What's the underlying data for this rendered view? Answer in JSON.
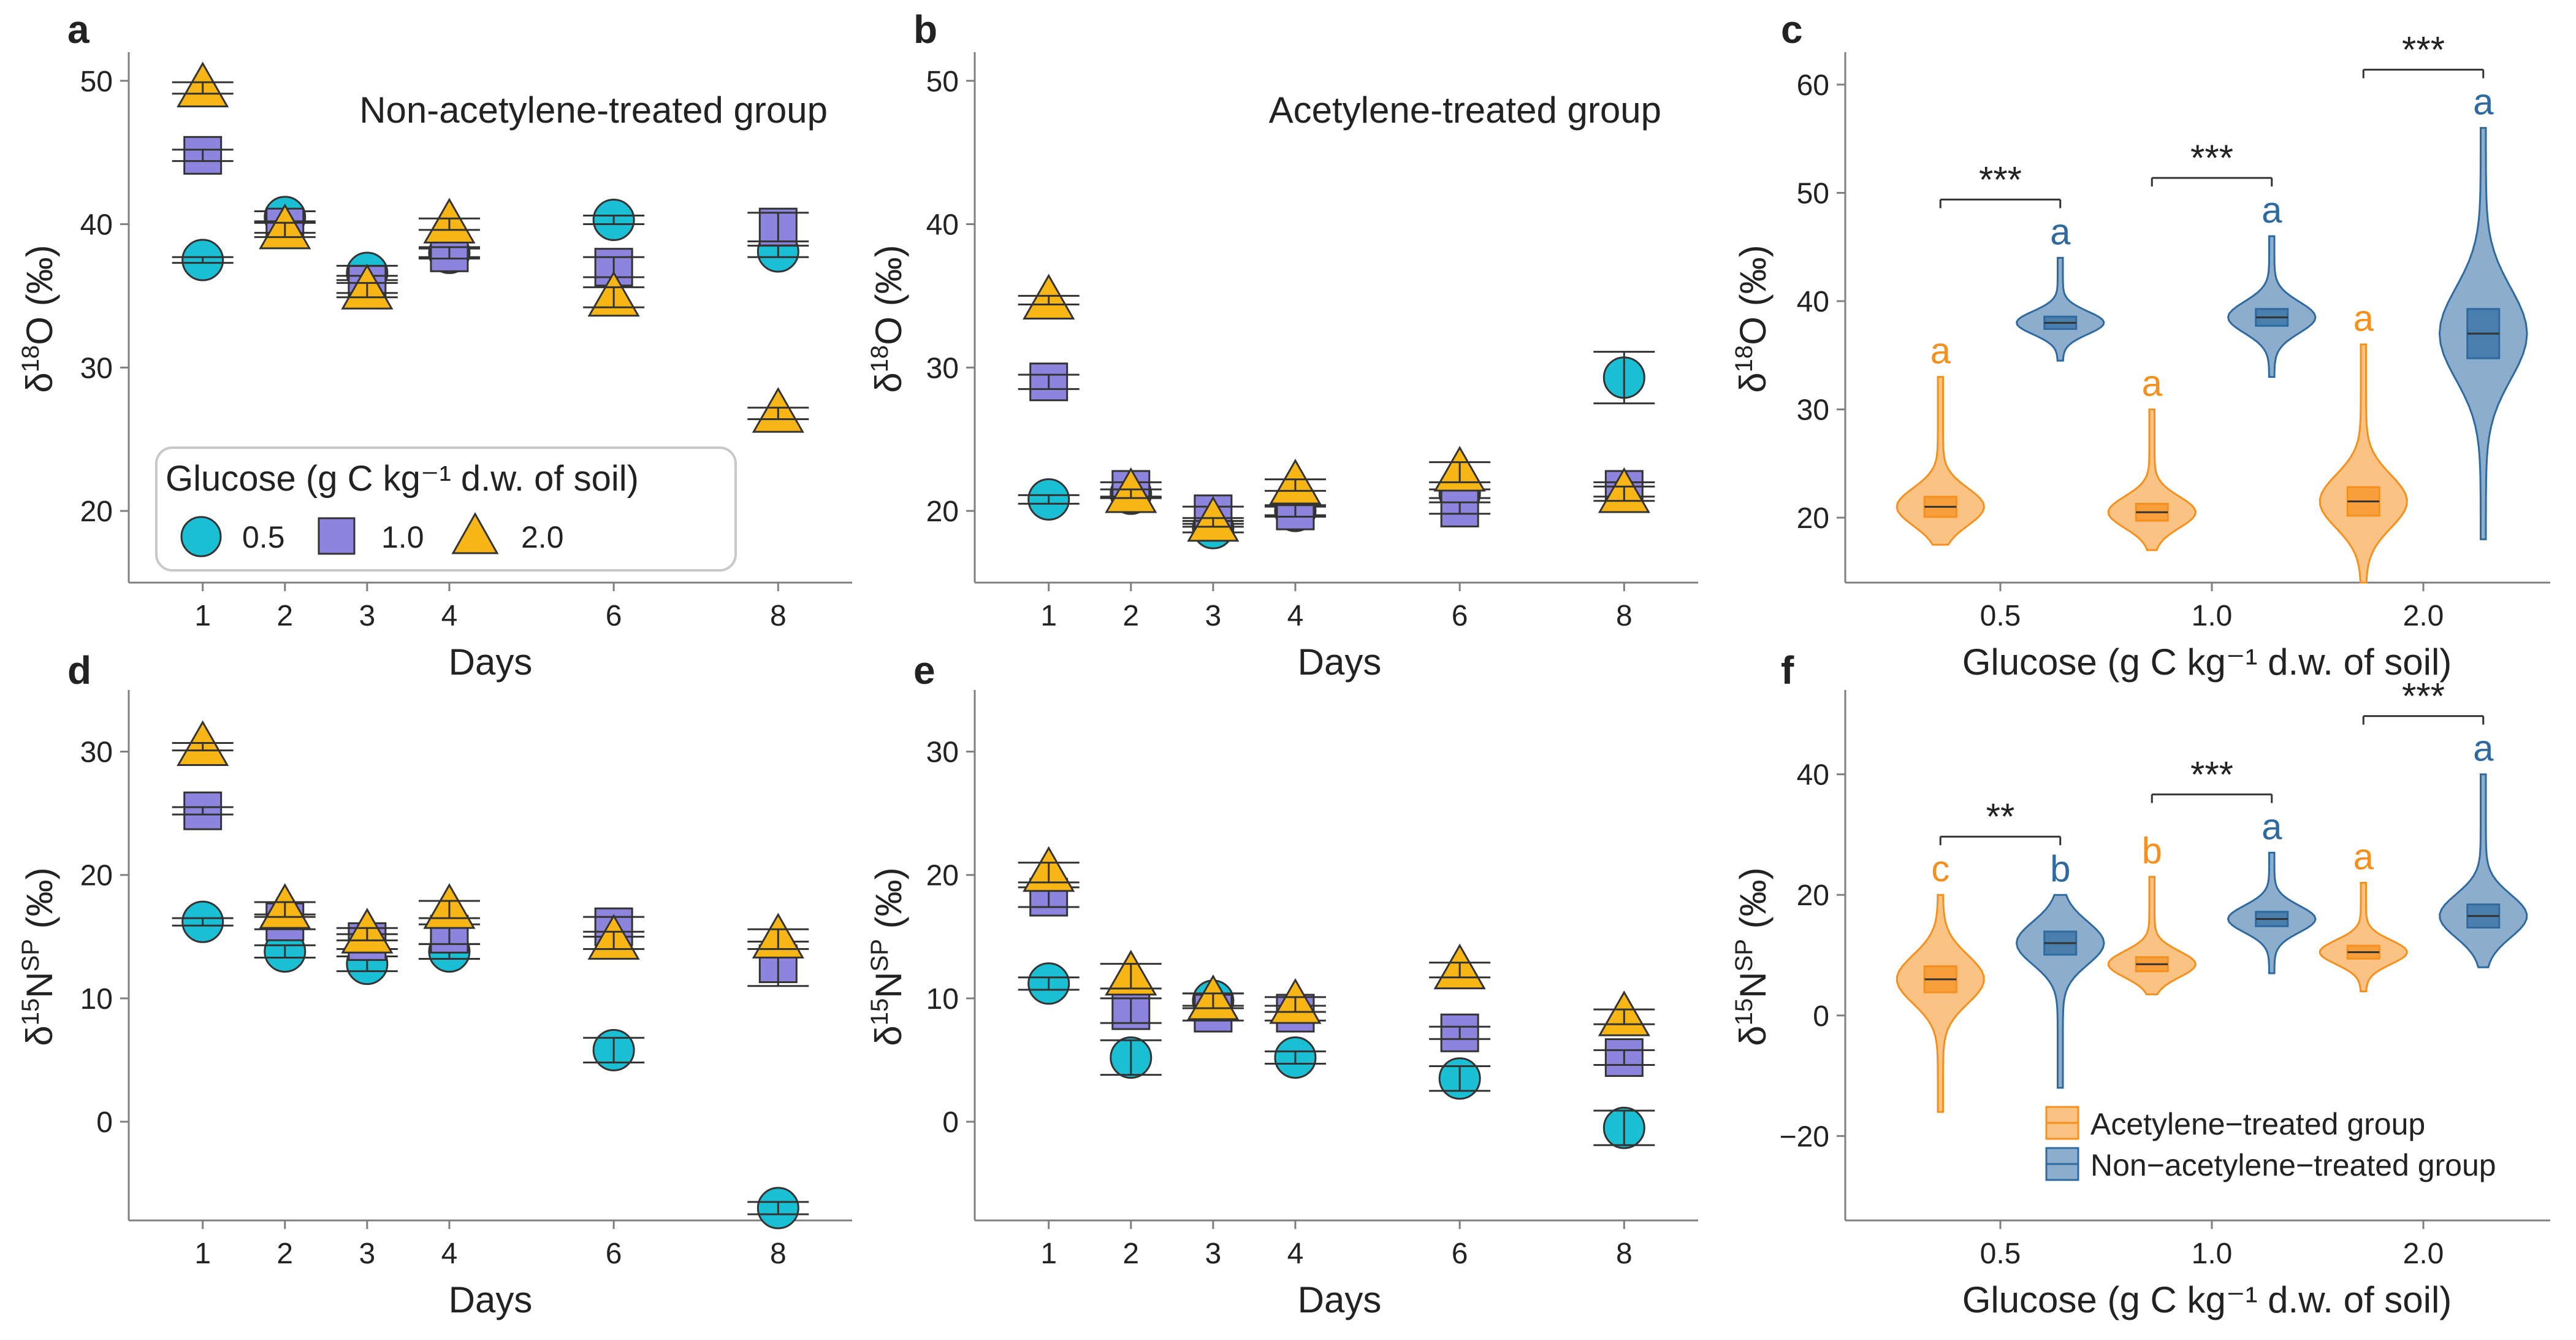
{
  "figure": {
    "colors": {
      "circle": "#1bbfd4",
      "square": "#8c84dd",
      "triangle": "#f7b615",
      "acetylene": "#f5901e",
      "non_acetylene": "#2e6aa0",
      "axis": "#7f7f7f",
      "text": "#222222"
    },
    "glucose_legend": {
      "title": "Glucose (g C kg⁻¹ d.w. of soil)",
      "items": [
        "0.5",
        "1.0",
        "2.0"
      ]
    },
    "violin_legend": {
      "items": [
        "Acetylene−treated group",
        "Non−acetylene−treated group"
      ]
    }
  },
  "chart_data": [
    {
      "id": "a",
      "panel_label": "a",
      "type": "scatter",
      "title": "Non-acetylene-treated group",
      "xlabel": "Days",
      "ylabel_main": "δ",
      "ylabel_sup": "18",
      "ylabel_rest": "O (‰)",
      "x_ticks": [
        1,
        2,
        3,
        4,
        6,
        8
      ],
      "x_tick_labels": [
        "1",
        "2",
        "3",
        "4",
        "6",
        "8"
      ],
      "xlim": [
        0.1,
        8.9
      ],
      "y_ticks": [
        20,
        30,
        40,
        50
      ],
      "y_tick_labels": [
        "20",
        "30",
        "40",
        "50"
      ],
      "ylim": [
        15,
        52
      ],
      "series": [
        {
          "name": "0.5",
          "marker": "circle",
          "x": [
            1,
            2,
            3,
            4,
            6,
            8
          ],
          "y": [
            37.5,
            40.5,
            36.6,
            38.0,
            40.3,
            38.1
          ],
          "err": [
            0.2,
            0.4,
            0.5,
            0.3,
            0.3,
            0.4
          ]
        },
        {
          "name": "1.0",
          "marker": "square",
          "x": [
            1,
            2,
            3,
            4,
            6,
            8
          ],
          "y": [
            44.8,
            39.8,
            35.8,
            38.0,
            37.0,
            39.8
          ],
          "err": [
            0.4,
            0.4,
            0.6,
            0.4,
            0.7,
            1.0
          ]
        },
        {
          "name": "2.0",
          "marker": "triangle",
          "x": [
            1,
            2,
            3,
            4,
            6,
            8
          ],
          "y": [
            49.5,
            39.6,
            35.4,
            40.0,
            34.9,
            26.8
          ],
          "err": [
            0.4,
            0.5,
            0.5,
            0.4,
            0.7,
            0.4
          ]
        }
      ]
    },
    {
      "id": "b",
      "panel_label": "b",
      "type": "scatter",
      "title": "Acetylene-treated group",
      "xlabel": "Days",
      "ylabel_main": "δ",
      "ylabel_sup": "18",
      "ylabel_rest": "O (‰)",
      "x_ticks": [
        1,
        2,
        3,
        4,
        6,
        8
      ],
      "x_tick_labels": [
        "1",
        "2",
        "3",
        "4",
        "6",
        "8"
      ],
      "xlim": [
        0.1,
        8.9
      ],
      "y_ticks": [
        20,
        30,
        40,
        50
      ],
      "y_tick_labels": [
        "20",
        "30",
        "40",
        "50"
      ],
      "ylim": [
        15,
        52
      ],
      "series": [
        {
          "name": "0.5",
          "marker": "circle",
          "x": [
            1,
            2,
            3,
            4,
            6,
            8
          ],
          "y": [
            20.8,
            21.2,
            18.8,
            20.0,
            21.2,
            29.3
          ],
          "err": [
            0.3,
            0.3,
            0.3,
            0.3,
            0.3,
            1.8
          ]
        },
        {
          "name": "1.0",
          "marker": "square",
          "x": [
            1,
            2,
            3,
            4,
            6,
            8
          ],
          "y": [
            29.0,
            21.5,
            19.8,
            20.0,
            20.2,
            21.5
          ],
          "err": [
            0.5,
            0.5,
            0.5,
            0.4,
            0.4,
            0.5
          ]
        },
        {
          "name": "2.0",
          "marker": "triangle",
          "x": [
            1,
            2,
            3,
            4,
            6,
            8
          ],
          "y": [
            34.7,
            21.2,
            19.2,
            21.8,
            22.7,
            21.2
          ],
          "err": [
            0.3,
            0.3,
            0.3,
            0.4,
            0.7,
            0.5
          ]
        }
      ]
    },
    {
      "id": "c",
      "panel_label": "c",
      "type": "violin",
      "xlabel": "Glucose (g C kg⁻¹ d.w. of soil)",
      "ylabel_main": "δ",
      "ylabel_sup": "18",
      "ylabel_rest": "O (‰)",
      "categories": [
        "0.5",
        "1.0",
        "2.0"
      ],
      "y_ticks": [
        20,
        30,
        40,
        50,
        60
      ],
      "y_tick_labels": [
        "20",
        "30",
        "40",
        "50",
        "60"
      ],
      "ylim": [
        14,
        63
      ],
      "series": [
        {
          "name": "Acetylene−treated group",
          "color_key": "acetylene",
          "medians": [
            21.0,
            20.5,
            21.5
          ],
          "ranges": [
            [
              17.5,
              33.0
            ],
            [
              17.0,
              30.0
            ],
            [
              14.0,
              36.0
            ]
          ],
          "letters": [
            "a",
            "a",
            "a"
          ]
        },
        {
          "name": "Non−acetylene−treated group",
          "color_key": "non_acetylene",
          "medians": [
            38.0,
            38.5,
            37.0
          ],
          "ranges": [
            [
              34.5,
              44.0
            ],
            [
              33.0,
              46.0
            ],
            [
              18.0,
              56.0
            ]
          ],
          "letters": [
            "a",
            "a",
            "a"
          ]
        }
      ],
      "significance": [
        "***",
        "***",
        "***"
      ]
    },
    {
      "id": "d",
      "panel_label": "d",
      "type": "scatter",
      "xlabel": "Days",
      "ylabel_main": "δ",
      "ylabel_sup": "15",
      "ylabel_rest": "N",
      "ylabel_sup2": "SP",
      "ylabel_tail": " (‰)",
      "x_ticks": [
        1,
        2,
        3,
        4,
        6,
        8
      ],
      "x_tick_labels": [
        "1",
        "2",
        "3",
        "4",
        "6",
        "8"
      ],
      "xlim": [
        0.1,
        8.9
      ],
      "y_ticks": [
        0,
        10,
        20,
        30
      ],
      "y_tick_labels": [
        "0",
        "10",
        "20",
        "30"
      ],
      "ylim": [
        -8,
        35
      ],
      "series": [
        {
          "name": "0.5",
          "marker": "circle",
          "x": [
            1,
            2,
            3,
            4,
            6,
            8
          ],
          "y": [
            16.2,
            13.8,
            12.8,
            13.8,
            5.8,
            -7.0
          ],
          "err": [
            0.3,
            0.5,
            0.6,
            0.6,
            1.0,
            0.5
          ]
        },
        {
          "name": "1.0",
          "marker": "square",
          "x": [
            1,
            2,
            3,
            4,
            6,
            8
          ],
          "y": [
            25.2,
            16.2,
            14.6,
            15.2,
            15.8,
            12.8
          ],
          "err": [
            0.3,
            0.6,
            0.6,
            0.8,
            0.8,
            1.8
          ]
        },
        {
          "name": "2.0",
          "marker": "triangle",
          "x": [
            1,
            2,
            3,
            4,
            6,
            8
          ],
          "y": [
            30.4,
            17.2,
            15.2,
            17.2,
            14.7,
            14.8
          ],
          "err": [
            0.3,
            0.6,
            0.5,
            0.7,
            0.7,
            0.8
          ]
        }
      ]
    },
    {
      "id": "e",
      "panel_label": "e",
      "type": "scatter",
      "xlabel": "Days",
      "ylabel_main": "δ",
      "ylabel_sup": "15",
      "ylabel_rest": "N",
      "ylabel_sup2": "SP",
      "ylabel_tail": " (‰)",
      "x_ticks": [
        1,
        2,
        3,
        4,
        6,
        8
      ],
      "x_tick_labels": [
        "1",
        "2",
        "3",
        "4",
        "6",
        "8"
      ],
      "xlim": [
        0.1,
        8.9
      ],
      "y_ticks": [
        0,
        10,
        20,
        30
      ],
      "y_tick_labels": [
        "0",
        "10",
        "20",
        "30"
      ],
      "ylim": [
        -8,
        35
      ],
      "series": [
        {
          "name": "0.5",
          "marker": "circle",
          "x": [
            1,
            2,
            3,
            4,
            6,
            8
          ],
          "y": [
            11.2,
            5.2,
            9.8,
            5.2,
            3.5,
            -0.5
          ],
          "err": [
            0.5,
            1.4,
            0.6,
            0.5,
            1.0,
            1.4
          ]
        },
        {
          "name": "1.0",
          "marker": "square",
          "x": [
            1,
            2,
            3,
            4,
            6,
            8
          ],
          "y": [
            18.2,
            9.0,
            8.8,
            8.8,
            7.2,
            5.2
          ],
          "err": [
            0.8,
            1.0,
            0.6,
            0.6,
            0.5,
            0.6
          ]
        },
        {
          "name": "2.0",
          "marker": "triangle",
          "x": [
            1,
            2,
            3,
            4,
            6,
            8
          ],
          "y": [
            20.2,
            11.8,
            9.8,
            9.5,
            12.3,
            8.5
          ],
          "err": [
            0.8,
            1.0,
            0.6,
            0.6,
            0.6,
            0.6
          ]
        }
      ]
    },
    {
      "id": "f",
      "panel_label": "f",
      "type": "violin",
      "xlabel": "Glucose (g C kg⁻¹ d.w. of soil)",
      "ylabel_main": "δ",
      "ylabel_sup": "15",
      "ylabel_rest": "N",
      "ylabel_sup2": "SP",
      "ylabel_tail": " (‰)",
      "categories": [
        "0.5",
        "1.0",
        "2.0"
      ],
      "y_ticks": [
        -20,
        0,
        20,
        40
      ],
      "y_tick_labels": [
        "−20",
        "0",
        "20",
        "40"
      ],
      "ylim": [
        -34,
        54
      ],
      "series": [
        {
          "name": "Acetylene−treated group",
          "color_key": "acetylene",
          "medians": [
            6.0,
            8.5,
            10.5
          ],
          "ranges": [
            [
              -16.0,
              20.0
            ],
            [
              3.5,
              23.0
            ],
            [
              4.0,
              22.0
            ]
          ],
          "letters": [
            "c",
            "b",
            "a"
          ]
        },
        {
          "name": "Non−acetylene−treated group",
          "color_key": "non_acetylene",
          "medians": [
            12.0,
            16.0,
            16.5
          ],
          "ranges": [
            [
              -12.0,
              20.0
            ],
            [
              7.0,
              27.0
            ],
            [
              8.0,
              40.0
            ]
          ],
          "letters": [
            "b",
            "a",
            "a"
          ]
        }
      ],
      "significance": [
        "**",
        "***",
        "***"
      ]
    }
  ]
}
